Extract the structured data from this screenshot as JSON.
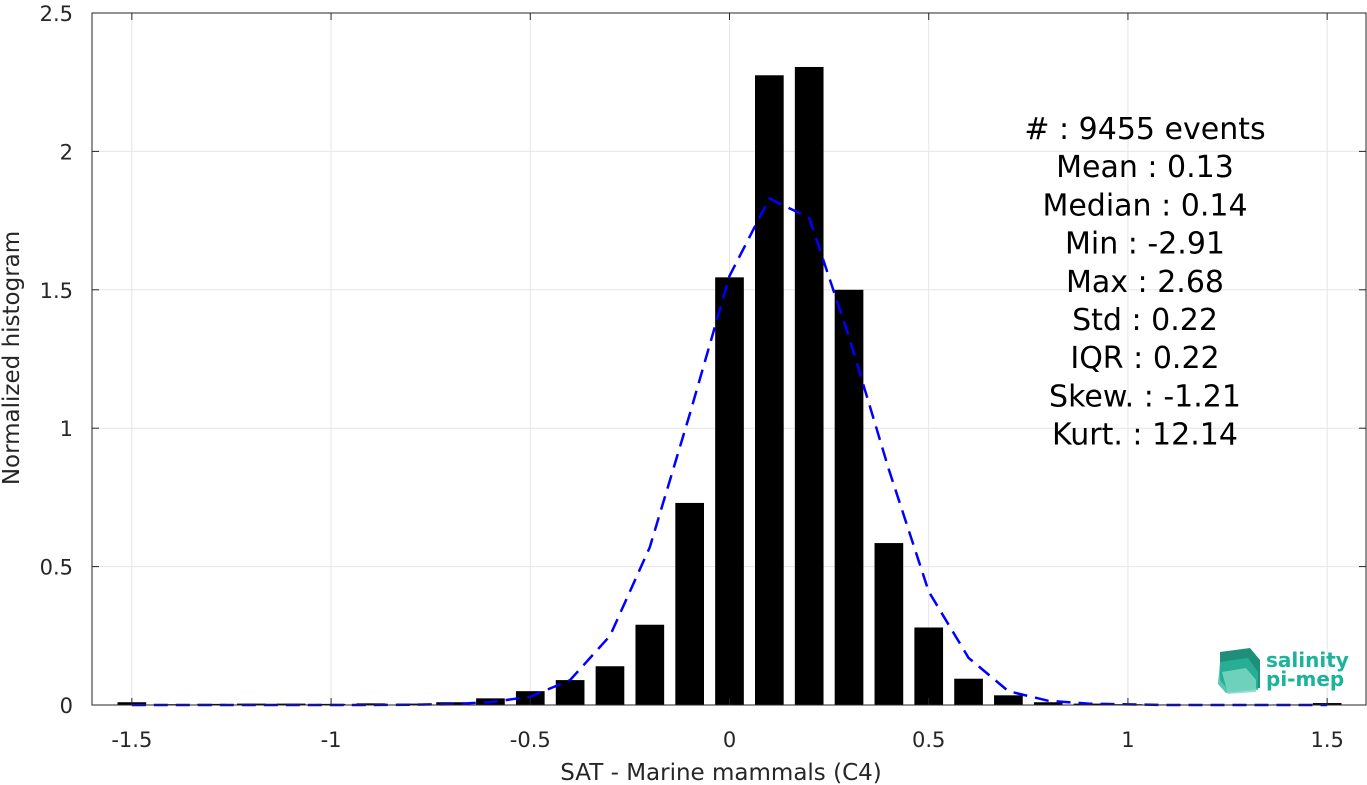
{
  "chart_data": {
    "type": "bar",
    "xlabel": "SAT - Marine mammals (C4)",
    "ylabel": "Normalized histogram",
    "xlim": [
      -1.6,
      1.6
    ],
    "ylim": [
      0,
      2.5
    ],
    "xticks": [
      "-1.5",
      "-1",
      "-0.5",
      "0",
      "0.5",
      "1",
      "1.5"
    ],
    "yticks": [
      "0",
      "0.5",
      "1",
      "1.5",
      "2",
      "2.5"
    ],
    "grid": true,
    "bar_color": "#000000",
    "bars": {
      "x": [
        -1.5,
        -1.4,
        -1.3,
        -1.2,
        -1.1,
        -1.0,
        -0.9,
        -0.8,
        -0.7,
        -0.6,
        -0.5,
        -0.4,
        -0.3,
        -0.2,
        -0.1,
        0.0,
        0.1,
        0.2,
        0.3,
        0.4,
        0.5,
        0.6,
        0.7,
        0.8,
        0.9,
        1.0,
        1.1,
        1.2,
        1.3,
        1.4,
        1.5
      ],
      "values": [
        0.01,
        0.003,
        0.004,
        0.005,
        0.005,
        0.004,
        0.006,
        0.005,
        0.01,
        0.024,
        0.05,
        0.09,
        0.14,
        0.29,
        0.73,
        1.545,
        2.275,
        2.305,
        1.5,
        0.585,
        0.28,
        0.095,
        0.035,
        0.01,
        0.005,
        0.003,
        0.002,
        0.002,
        0.002,
        0.002,
        0.007
      ]
    },
    "fit_line": {
      "style": "dashed",
      "color": "#0000ff",
      "x": [
        -1.5,
        -1.4,
        -1.3,
        -1.2,
        -1.1,
        -1.0,
        -0.9,
        -0.8,
        -0.7,
        -0.6,
        -0.5,
        -0.4,
        -0.3,
        -0.2,
        -0.1,
        0.0,
        0.1,
        0.2,
        0.3,
        0.4,
        0.5,
        0.6,
        0.7,
        0.8,
        0.9,
        1.0,
        1.1,
        1.2,
        1.3,
        1.4,
        1.5
      ],
      "y": [
        0.0,
        0.0,
        0.0,
        0.0,
        0.0,
        0.0,
        0.0,
        0.001,
        0.003,
        0.01,
        0.03,
        0.09,
        0.25,
        0.57,
        1.05,
        1.55,
        1.83,
        1.76,
        1.33,
        0.85,
        0.41,
        0.17,
        0.05,
        0.015,
        0.005,
        0.002,
        0.0,
        0.0,
        0.0,
        0.0,
        0.0
      ]
    },
    "annotations": [
      "#  : 9455 events",
      "Mean : 0.13",
      "Median : 0.14",
      "Min : -2.91",
      "Max : 2.68",
      "Std : 0.22",
      "IQR : 0.22",
      "Skew. : -1.21",
      "Kurt. : 12.14"
    ]
  },
  "logo": {
    "line1": "salinity",
    "line2": "pi-mep"
  }
}
